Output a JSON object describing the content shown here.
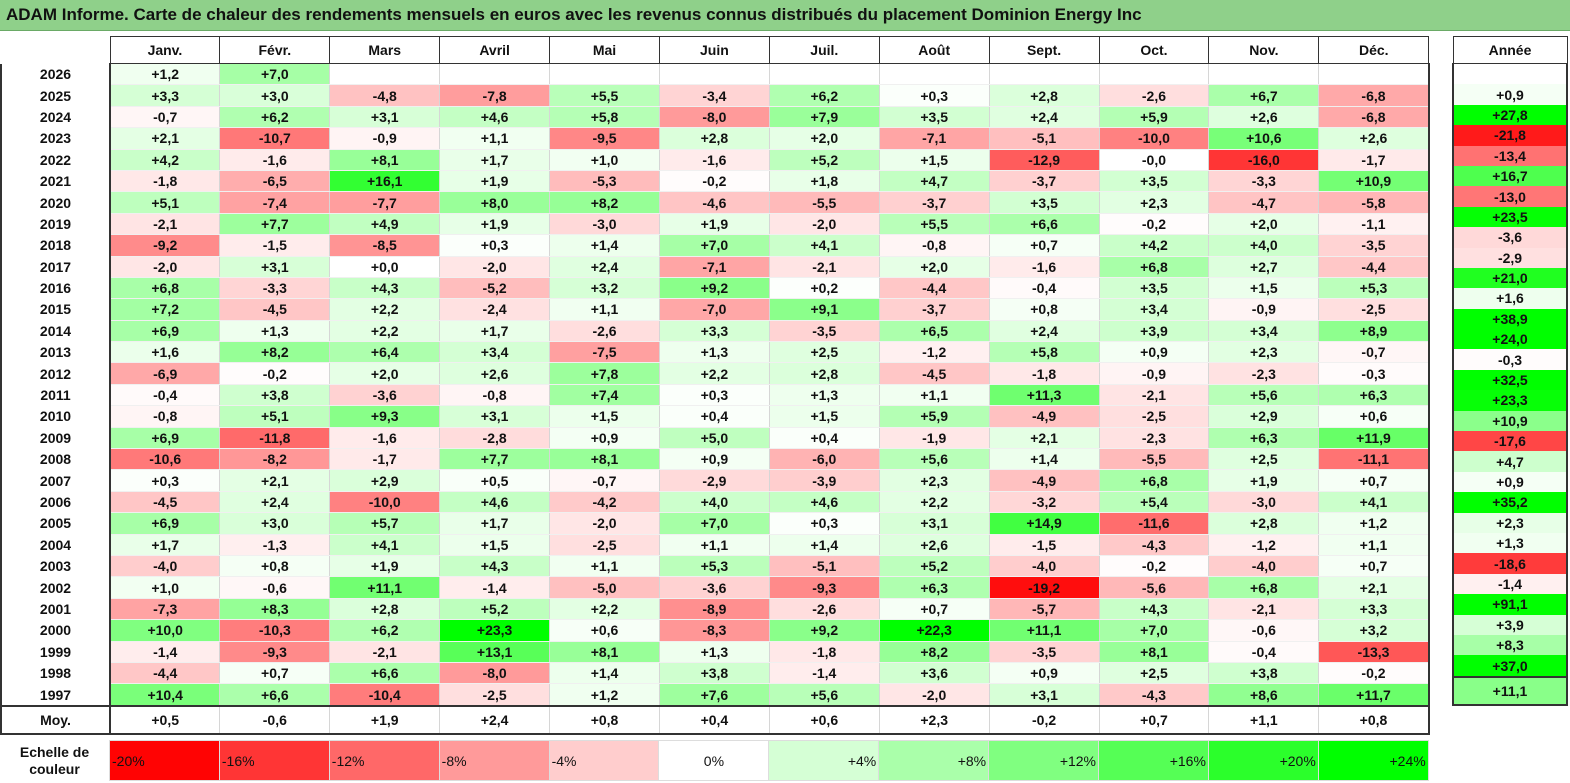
{
  "title": "ADAM Informe. Carte de chaleur des rendements mensuels en euros avec les revenus connus distribués du placement Dominion Energy Inc",
  "colors": {
    "title_bg": "#8fd08a",
    "negative_max": "#ff0000",
    "neutral": "#ffffff",
    "positive_max": "#00ff00"
  },
  "chart_data": {
    "type": "heatmap",
    "columns": [
      "Janv.",
      "Févr.",
      "Mars",
      "Avril",
      "Mai",
      "Juin",
      "Juil.",
      "Août",
      "Sept.",
      "Oct.",
      "Nov.",
      "Déc."
    ],
    "year_column": "Année",
    "rows": [
      {
        "year": "2026",
        "months": [
          "+1,2",
          "+7,0",
          "",
          "",
          "",
          "",
          "",
          "",
          "",
          "",
          "",
          ""
        ],
        "annual": ""
      },
      {
        "year": "2025",
        "months": [
          "+3,3",
          "+3,0",
          "-4,8",
          "-7,8",
          "+5,5",
          "-3,4",
          "+6,2",
          "+0,3",
          "+2,8",
          "-2,6",
          "+6,7",
          "-6,8"
        ],
        "annual": "+0,9"
      },
      {
        "year": "2024",
        "months": [
          "-0,7",
          "+6,2",
          "+3,1",
          "+4,6",
          "+5,8",
          "-8,0",
          "+7,9",
          "+3,5",
          "+2,4",
          "+5,9",
          "+2,6",
          "-6,8"
        ],
        "annual": "+27,8"
      },
      {
        "year": "2023",
        "months": [
          "+2,1",
          "-10,7",
          "-0,9",
          "+1,1",
          "-9,5",
          "+2,8",
          "+2,0",
          "-7,1",
          "-5,1",
          "-10,0",
          "+10,6",
          "+2,6"
        ],
        "annual": "-21,8"
      },
      {
        "year": "2022",
        "months": [
          "+4,2",
          "-1,6",
          "+8,1",
          "+1,7",
          "+1,0",
          "-1,6",
          "+5,2",
          "+1,5",
          "-12,9",
          "-0,0",
          "-16,0",
          "-1,7"
        ],
        "annual": "-13,4"
      },
      {
        "year": "2021",
        "months": [
          "-1,8",
          "-6,5",
          "+16,1",
          "+1,9",
          "-5,3",
          "-0,2",
          "+1,8",
          "+4,7",
          "-3,7",
          "+3,5",
          "-3,3",
          "+10,9"
        ],
        "annual": "+16,7"
      },
      {
        "year": "2020",
        "months": [
          "+5,1",
          "-7,4",
          "-7,7",
          "+8,0",
          "+8,2",
          "-4,6",
          "-5,5",
          "-3,7",
          "+3,5",
          "+2,3",
          "-4,7",
          "-5,8"
        ],
        "annual": "-13,0"
      },
      {
        "year": "2019",
        "months": [
          "-2,1",
          "+7,7",
          "+4,9",
          "+1,9",
          "-3,0",
          "+1,9",
          "-2,0",
          "+5,5",
          "+6,6",
          "-0,2",
          "+2,0",
          "-1,1"
        ],
        "annual": "+23,5"
      },
      {
        "year": "2018",
        "months": [
          "-9,2",
          "-1,5",
          "-8,5",
          "+0,3",
          "+1,4",
          "+7,0",
          "+4,1",
          "-0,8",
          "+0,7",
          "+4,2",
          "+4,0",
          "-3,5"
        ],
        "annual": "-3,6"
      },
      {
        "year": "2017",
        "months": [
          "-2,0",
          "+3,1",
          "+0,0",
          "-2,0",
          "+2,4",
          "-7,1",
          "-2,1",
          "+2,0",
          "-1,6",
          "+6,8",
          "+2,7",
          "-4,4"
        ],
        "annual": "-2,9"
      },
      {
        "year": "2016",
        "months": [
          "+6,8",
          "-3,3",
          "+4,3",
          "-5,2",
          "+3,2",
          "+9,2",
          "+0,2",
          "-4,4",
          "-0,4",
          "+3,5",
          "+1,5",
          "+5,3"
        ],
        "annual": "+21,0"
      },
      {
        "year": "2015",
        "months": [
          "+7,2",
          "-4,5",
          "+2,2",
          "-2,4",
          "+1,1",
          "-7,0",
          "+9,1",
          "-3,7",
          "+0,8",
          "+3,4",
          "-0,9",
          "-2,5"
        ],
        "annual": "+1,6"
      },
      {
        "year": "2014",
        "months": [
          "+6,9",
          "+1,3",
          "+2,2",
          "+1,7",
          "-2,6",
          "+3,3",
          "-3,5",
          "+6,5",
          "+2,4",
          "+3,9",
          "+3,4",
          "+8,9"
        ],
        "annual": "+38,9"
      },
      {
        "year": "2013",
        "months": [
          "+1,6",
          "+8,2",
          "+6,4",
          "+3,4",
          "-7,5",
          "+1,3",
          "+2,5",
          "-1,2",
          "+5,8",
          "+0,9",
          "+2,3",
          "-0,7"
        ],
        "annual": "+24,0"
      },
      {
        "year": "2012",
        "months": [
          "-6,9",
          "-0,2",
          "+2,0",
          "+2,6",
          "+7,8",
          "+2,2",
          "+2,8",
          "-4,5",
          "-1,8",
          "-0,9",
          "-2,3",
          "-0,3"
        ],
        "annual": "-0,3"
      },
      {
        "year": "2011",
        "months": [
          "-0,4",
          "+3,8",
          "-3,6",
          "-0,8",
          "+7,4",
          "+0,3",
          "+1,3",
          "+1,1",
          "+11,3",
          "-2,1",
          "+5,6",
          "+6,3"
        ],
        "annual": "+32,5"
      },
      {
        "year": "2010",
        "months": [
          "-0,8",
          "+5,1",
          "+9,3",
          "+3,1",
          "+1,5",
          "+0,4",
          "+1,5",
          "+5,9",
          "-4,9",
          "-2,5",
          "+2,9",
          "+0,6"
        ],
        "annual": "+23,3"
      },
      {
        "year": "2009",
        "months": [
          "+6,9",
          "-11,8",
          "-1,6",
          "-2,8",
          "+0,9",
          "+5,0",
          "+0,4",
          "-1,9",
          "+2,1",
          "-2,3",
          "+6,3",
          "+11,9"
        ],
        "annual": "+10,9"
      },
      {
        "year": "2008",
        "months": [
          "-10,6",
          "-8,2",
          "-1,7",
          "+7,7",
          "+8,1",
          "+0,9",
          "-6,0",
          "+5,6",
          "+1,4",
          "-5,5",
          "+2,5",
          "-11,1"
        ],
        "annual": "-17,6"
      },
      {
        "year": "2007",
        "months": [
          "+0,3",
          "+2,1",
          "+2,9",
          "+0,5",
          "-0,7",
          "-2,9",
          "-3,9",
          "+2,3",
          "-4,9",
          "+6,8",
          "+1,9",
          "+0,7"
        ],
        "annual": "+4,7"
      },
      {
        "year": "2006",
        "months": [
          "-4,5",
          "+2,4",
          "-10,0",
          "+4,6",
          "-4,2",
          "+4,0",
          "+4,6",
          "+2,2",
          "-3,2",
          "+5,4",
          "-3,0",
          "+4,1"
        ],
        "annual": "+0,9"
      },
      {
        "year": "2005",
        "months": [
          "+6,9",
          "+3,0",
          "+5,7",
          "+1,7",
          "-2,0",
          "+7,0",
          "+0,3",
          "+3,1",
          "+14,9",
          "-11,6",
          "+2,8",
          "+1,2"
        ],
        "annual": "+35,2"
      },
      {
        "year": "2004",
        "months": [
          "+1,7",
          "-1,3",
          "+4,1",
          "+1,5",
          "-2,5",
          "+1,1",
          "+1,4",
          "+2,6",
          "-1,5",
          "-4,3",
          "-1,2",
          "+1,1"
        ],
        "annual": "+2,3"
      },
      {
        "year": "2003",
        "months": [
          "-4,0",
          "+0,8",
          "+1,9",
          "+4,3",
          "+1,1",
          "+5,3",
          "-5,1",
          "+5,2",
          "-4,0",
          "-0,2",
          "-4,0",
          "+0,7"
        ],
        "annual": "+1,3"
      },
      {
        "year": "2002",
        "months": [
          "+1,0",
          "-0,6",
          "+11,1",
          "-1,4",
          "-5,0",
          "-3,6",
          "-9,3",
          "+6,3",
          "-19,2",
          "-5,6",
          "+6,8",
          "+2,1"
        ],
        "annual": "-18,6"
      },
      {
        "year": "2001",
        "months": [
          "-7,3",
          "+8,3",
          "+2,8",
          "+5,2",
          "+2,2",
          "-8,9",
          "-2,6",
          "+0,7",
          "-5,7",
          "+4,3",
          "-2,1",
          "+3,3"
        ],
        "annual": "-1,4"
      },
      {
        "year": "2000",
        "months": [
          "+10,0",
          "-10,3",
          "+6,2",
          "+23,3",
          "+0,6",
          "-8,3",
          "+9,2",
          "+22,3",
          "+11,1",
          "+7,0",
          "-0,6",
          "+3,2"
        ],
        "annual": "+91,1"
      },
      {
        "year": "1999",
        "months": [
          "-1,4",
          "-9,3",
          "-2,1",
          "+13,1",
          "+8,1",
          "+1,3",
          "-1,8",
          "+8,2",
          "-3,5",
          "+8,1",
          "-0,4",
          "-13,3"
        ],
        "annual": "+3,9"
      },
      {
        "year": "1998",
        "months": [
          "-4,4",
          "+0,7",
          "+6,6",
          "-8,0",
          "+1,4",
          "+3,8",
          "-1,4",
          "+3,6",
          "+0,9",
          "+2,5",
          "+3,8",
          "-0,2"
        ],
        "annual": "+8,3"
      },
      {
        "year": "1997",
        "months": [
          "+10,4",
          "+6,6",
          "-10,4",
          "-2,5",
          "+1,2",
          "+7,6",
          "+5,6",
          "-2,0",
          "+3,1",
          "-4,3",
          "+8,6",
          "+11,7"
        ],
        "annual": "+37,0"
      }
    ],
    "average": {
      "label": "Moy.",
      "months": [
        "+0,5",
        "-0,6",
        "+1,9",
        "+2,4",
        "+0,8",
        "+0,4",
        "+0,6",
        "+2,3",
        "-0,2",
        "+0,7",
        "+1,1",
        "+0,8"
      ],
      "annual": "+11,1"
    },
    "scale": {
      "label": "Echelle de couleur",
      "steps": [
        "-20%",
        "-16%",
        "-12%",
        "-8%",
        "-4%",
        "0%",
        "+4%",
        "+8%",
        "+12%",
        "+16%",
        "+20%",
        "+24%"
      ]
    }
  }
}
